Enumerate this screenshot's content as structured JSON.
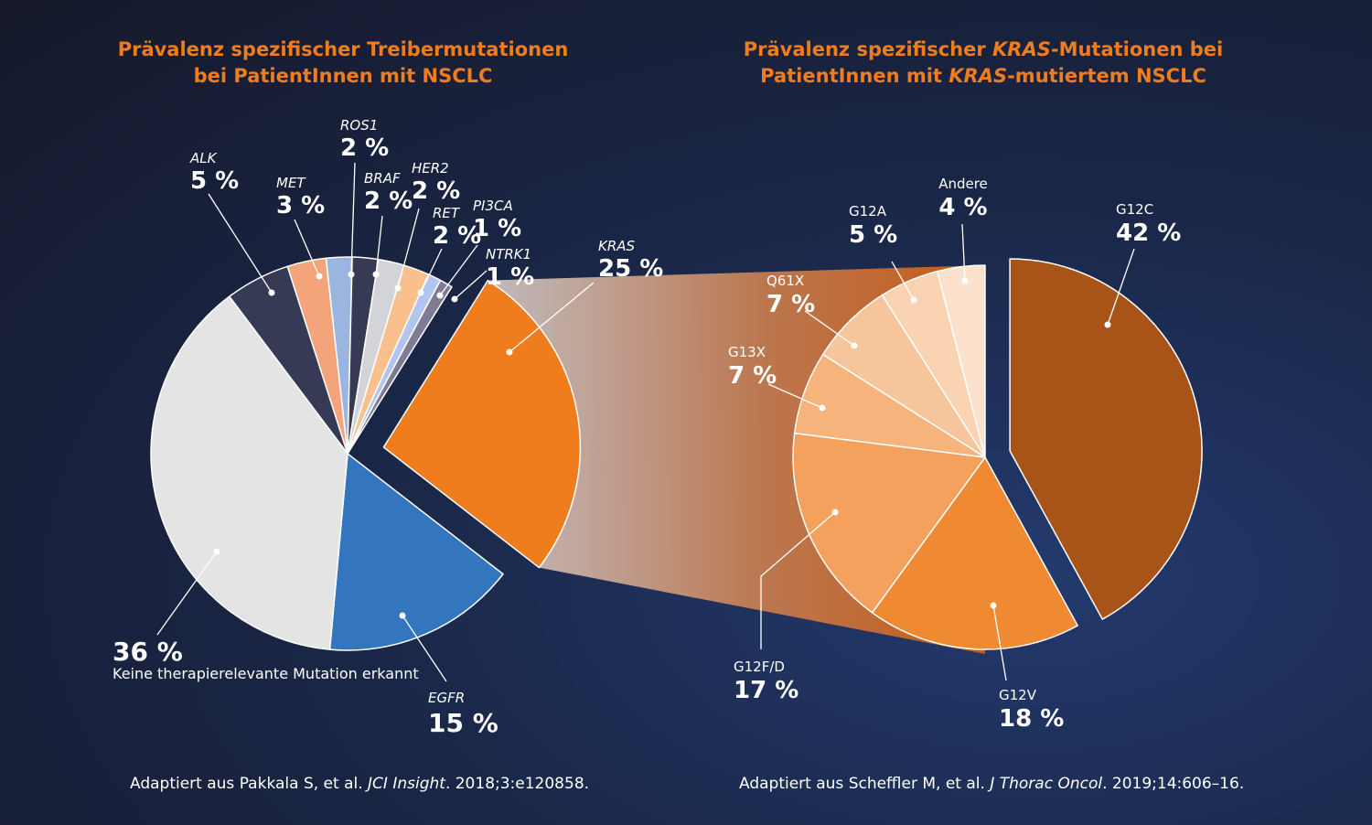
{
  "titles": {
    "left_line1": "Prävalenz spezifischer Treibermutationen",
    "left_line2": "bei PatientInnen mit NSCLC",
    "right_line1_pre": "Prävalenz spezifischer ",
    "right_line1_em": "KRAS",
    "right_line1_post": "-Mutationen bei",
    "right_line2_pre": "PatientInnen mit ",
    "right_line2_em": "KRAS",
    "right_line2_post": "-mutiertem NSCLC"
  },
  "sources": {
    "left_pre": "Adaptiert aus Pakkala S, et al. ",
    "left_em": "JCI Insight",
    "left_post": ". 2018;3:e120858.",
    "right_pre": "Adaptiert aus Scheffler M, et al. ",
    "right_em": "J Thorac Oncol",
    "right_post": ". 2019;14:606–16."
  },
  "chart_data": [
    {
      "type": "pie",
      "title": "Prävalenz spezifischer Treibermutationen bei PatientInnen mit NSCLC",
      "slices": [
        {
          "name": "KRAS",
          "value": 25,
          "label": "25 %",
          "color": "#ef7d1e",
          "exploded": true
        },
        {
          "name": "EGFR",
          "value": 15,
          "label": "15 %",
          "color": "#3376bd"
        },
        {
          "name": "Keine therapierelevante Mutation erkannt",
          "value": 36,
          "label": "36 %",
          "color": "#e4e4e4"
        },
        {
          "name": "ALK",
          "value": 5,
          "label": "5 %",
          "color": "#373a54"
        },
        {
          "name": "MET",
          "value": 3,
          "label": "3 %",
          "color": "#f4a47a"
        },
        {
          "name": "ROS1",
          "value": 2,
          "label": "2 %",
          "color": "#9ab6e0"
        },
        {
          "name": "BRAF",
          "value": 2,
          "label": "2 %",
          "color": "#373a54"
        },
        {
          "name": "HER2",
          "value": 2,
          "label": "2 %",
          "color": "#d2d4d8"
        },
        {
          "name": "RET",
          "value": 2,
          "label": "2 %",
          "color": "#f9bf8d"
        },
        {
          "name": "PI3CA",
          "value": 1,
          "label": "1 %",
          "color": "#b3c5ee"
        },
        {
          "name": "NTRK1",
          "value": 1,
          "label": "1 %",
          "color": "#7f7b92"
        }
      ]
    },
    {
      "type": "pie",
      "title": "Prävalenz spezifischer KRAS-Mutationen bei PatientInnen mit KRAS-mutiertem NSCLC",
      "slices": [
        {
          "name": "G12C",
          "value": 42,
          "label": "42 %",
          "color": "#a85419",
          "exploded": true
        },
        {
          "name": "G12V",
          "value": 18,
          "label": "18 %",
          "color": "#f08a32"
        },
        {
          "name": "G12F/D",
          "value": 17,
          "label": "17 %",
          "color": "#f4a15e"
        },
        {
          "name": "G13X",
          "value": 7,
          "label": "7 %",
          "color": "#f6b47c"
        },
        {
          "name": "Q61X",
          "value": 7,
          "label": "7 %",
          "color": "#f7c59b"
        },
        {
          "name": "G12A",
          "value": 5,
          "label": "5 %",
          "color": "#f9d3b2"
        },
        {
          "name": "Andere",
          "value": 4,
          "label": "4 %",
          "color": "#fce2cd"
        }
      ]
    }
  ]
}
